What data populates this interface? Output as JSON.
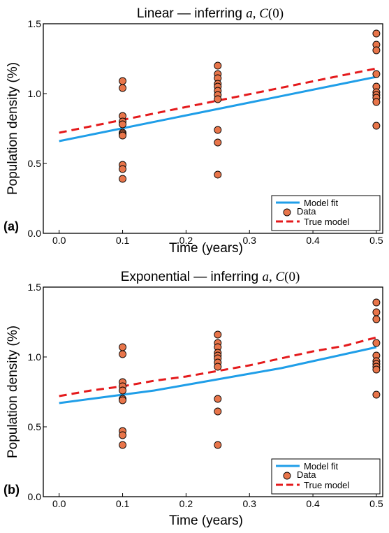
{
  "chart_data": [
    {
      "type": "scatter",
      "panel_label": "(a)",
      "title": {
        "prefix": "Linear — inferring ",
        "var_a": "a",
        "sep": ", ",
        "var_c": "C",
        "arg": "(0)"
      },
      "xlabel": "Time (years)",
      "ylabel": "Population density (%)",
      "xlim": [
        -0.025,
        0.51
      ],
      "ylim": [
        0.0,
        1.5
      ],
      "xticks": [
        "0.0",
        "0.1",
        "0.2",
        "0.3",
        "0.4",
        "0.5"
      ],
      "yticks": [
        "0.0",
        "0.5",
        "1.0",
        "1.5"
      ],
      "legend_position": "bottom-right",
      "legend": [
        "Model fit",
        "Data",
        "True model"
      ],
      "model_fit": {
        "x": [
          0.0,
          0.5
        ],
        "y": [
          0.66,
          1.12
        ],
        "color": "#1f9ee8"
      },
      "true_model": {
        "x": [
          0.0,
          0.5
        ],
        "y": [
          0.72,
          1.18
        ],
        "color": "#e41a1c"
      },
      "data_points": [
        {
          "x": 0.1,
          "y": 1.09
        },
        {
          "x": 0.1,
          "y": 1.04
        },
        {
          "x": 0.1,
          "y": 0.84
        },
        {
          "x": 0.1,
          "y": 0.8
        },
        {
          "x": 0.1,
          "y": 0.78
        },
        {
          "x": 0.1,
          "y": 0.72
        },
        {
          "x": 0.1,
          "y": 0.71
        },
        {
          "x": 0.1,
          "y": 0.7
        },
        {
          "x": 0.1,
          "y": 0.49
        },
        {
          "x": 0.1,
          "y": 0.46
        },
        {
          "x": 0.1,
          "y": 0.39
        },
        {
          "x": 0.25,
          "y": 1.2
        },
        {
          "x": 0.25,
          "y": 1.14
        },
        {
          "x": 0.25,
          "y": 1.11
        },
        {
          "x": 0.25,
          "y": 1.07
        },
        {
          "x": 0.25,
          "y": 1.05
        },
        {
          "x": 0.25,
          "y": 1.02
        },
        {
          "x": 0.25,
          "y": 0.99
        },
        {
          "x": 0.25,
          "y": 0.96
        },
        {
          "x": 0.25,
          "y": 0.74
        },
        {
          "x": 0.25,
          "y": 0.65
        },
        {
          "x": 0.25,
          "y": 0.42
        },
        {
          "x": 0.5,
          "y": 1.43
        },
        {
          "x": 0.5,
          "y": 1.35
        },
        {
          "x": 0.5,
          "y": 1.31
        },
        {
          "x": 0.5,
          "y": 1.14
        },
        {
          "x": 0.5,
          "y": 1.05
        },
        {
          "x": 0.5,
          "y": 1.01
        },
        {
          "x": 0.5,
          "y": 0.99
        },
        {
          "x": 0.5,
          "y": 0.97
        },
        {
          "x": 0.5,
          "y": 0.94
        },
        {
          "x": 0.5,
          "y": 0.77
        }
      ],
      "marker_color": "#e8754a"
    },
    {
      "type": "scatter",
      "panel_label": "(b)",
      "title": {
        "prefix": "Exponential — inferring ",
        "var_a": "a",
        "sep": ", ",
        "var_c": "C",
        "arg": "(0)"
      },
      "xlabel": "Time (years)",
      "ylabel": "Population density (%)",
      "xlim": [
        -0.025,
        0.51
      ],
      "ylim": [
        0.0,
        1.5
      ],
      "xticks": [
        "0.0",
        "0.1",
        "0.2",
        "0.3",
        "0.4",
        "0.5"
      ],
      "yticks": [
        "0.0",
        "0.5",
        "1.0",
        "1.5"
      ],
      "legend_position": "bottom-right",
      "legend": [
        "Model fit",
        "Data",
        "True model"
      ],
      "model_fit": {
        "x": [
          0.0,
          0.05,
          0.1,
          0.15,
          0.2,
          0.25,
          0.3,
          0.35,
          0.4,
          0.45,
          0.5
        ],
        "y": [
          0.67,
          0.7,
          0.73,
          0.76,
          0.8,
          0.84,
          0.88,
          0.92,
          0.97,
          1.02,
          1.07
        ],
        "color": "#1f9ee8"
      },
      "true_model": {
        "x": [
          0.0,
          0.05,
          0.1,
          0.15,
          0.2,
          0.25,
          0.3,
          0.35,
          0.4,
          0.45,
          0.5
        ],
        "y": [
          0.72,
          0.76,
          0.79,
          0.83,
          0.86,
          0.9,
          0.94,
          0.99,
          1.04,
          1.08,
          1.14
        ],
        "color": "#e41a1c"
      },
      "data_points": [
        {
          "x": 0.1,
          "y": 1.07
        },
        {
          "x": 0.1,
          "y": 1.02
        },
        {
          "x": 0.1,
          "y": 0.82
        },
        {
          "x": 0.1,
          "y": 0.79
        },
        {
          "x": 0.1,
          "y": 0.76
        },
        {
          "x": 0.1,
          "y": 0.7
        },
        {
          "x": 0.1,
          "y": 0.69
        },
        {
          "x": 0.1,
          "y": 0.47
        },
        {
          "x": 0.1,
          "y": 0.44
        },
        {
          "x": 0.1,
          "y": 0.37
        },
        {
          "x": 0.25,
          "y": 1.16
        },
        {
          "x": 0.25,
          "y": 1.1
        },
        {
          "x": 0.25,
          "y": 1.07
        },
        {
          "x": 0.25,
          "y": 1.03
        },
        {
          "x": 0.25,
          "y": 1.01
        },
        {
          "x": 0.25,
          "y": 0.99
        },
        {
          "x": 0.25,
          "y": 0.96
        },
        {
          "x": 0.25,
          "y": 0.93
        },
        {
          "x": 0.25,
          "y": 0.7
        },
        {
          "x": 0.25,
          "y": 0.61
        },
        {
          "x": 0.25,
          "y": 0.37
        },
        {
          "x": 0.5,
          "y": 1.39
        },
        {
          "x": 0.5,
          "y": 1.32
        },
        {
          "x": 0.5,
          "y": 1.27
        },
        {
          "x": 0.5,
          "y": 1.1
        },
        {
          "x": 0.5,
          "y": 1.01
        },
        {
          "x": 0.5,
          "y": 0.97
        },
        {
          "x": 0.5,
          "y": 0.95
        },
        {
          "x": 0.5,
          "y": 0.93
        },
        {
          "x": 0.5,
          "y": 0.91
        },
        {
          "x": 0.5,
          "y": 0.73
        }
      ],
      "marker_color": "#e8754a"
    }
  ]
}
